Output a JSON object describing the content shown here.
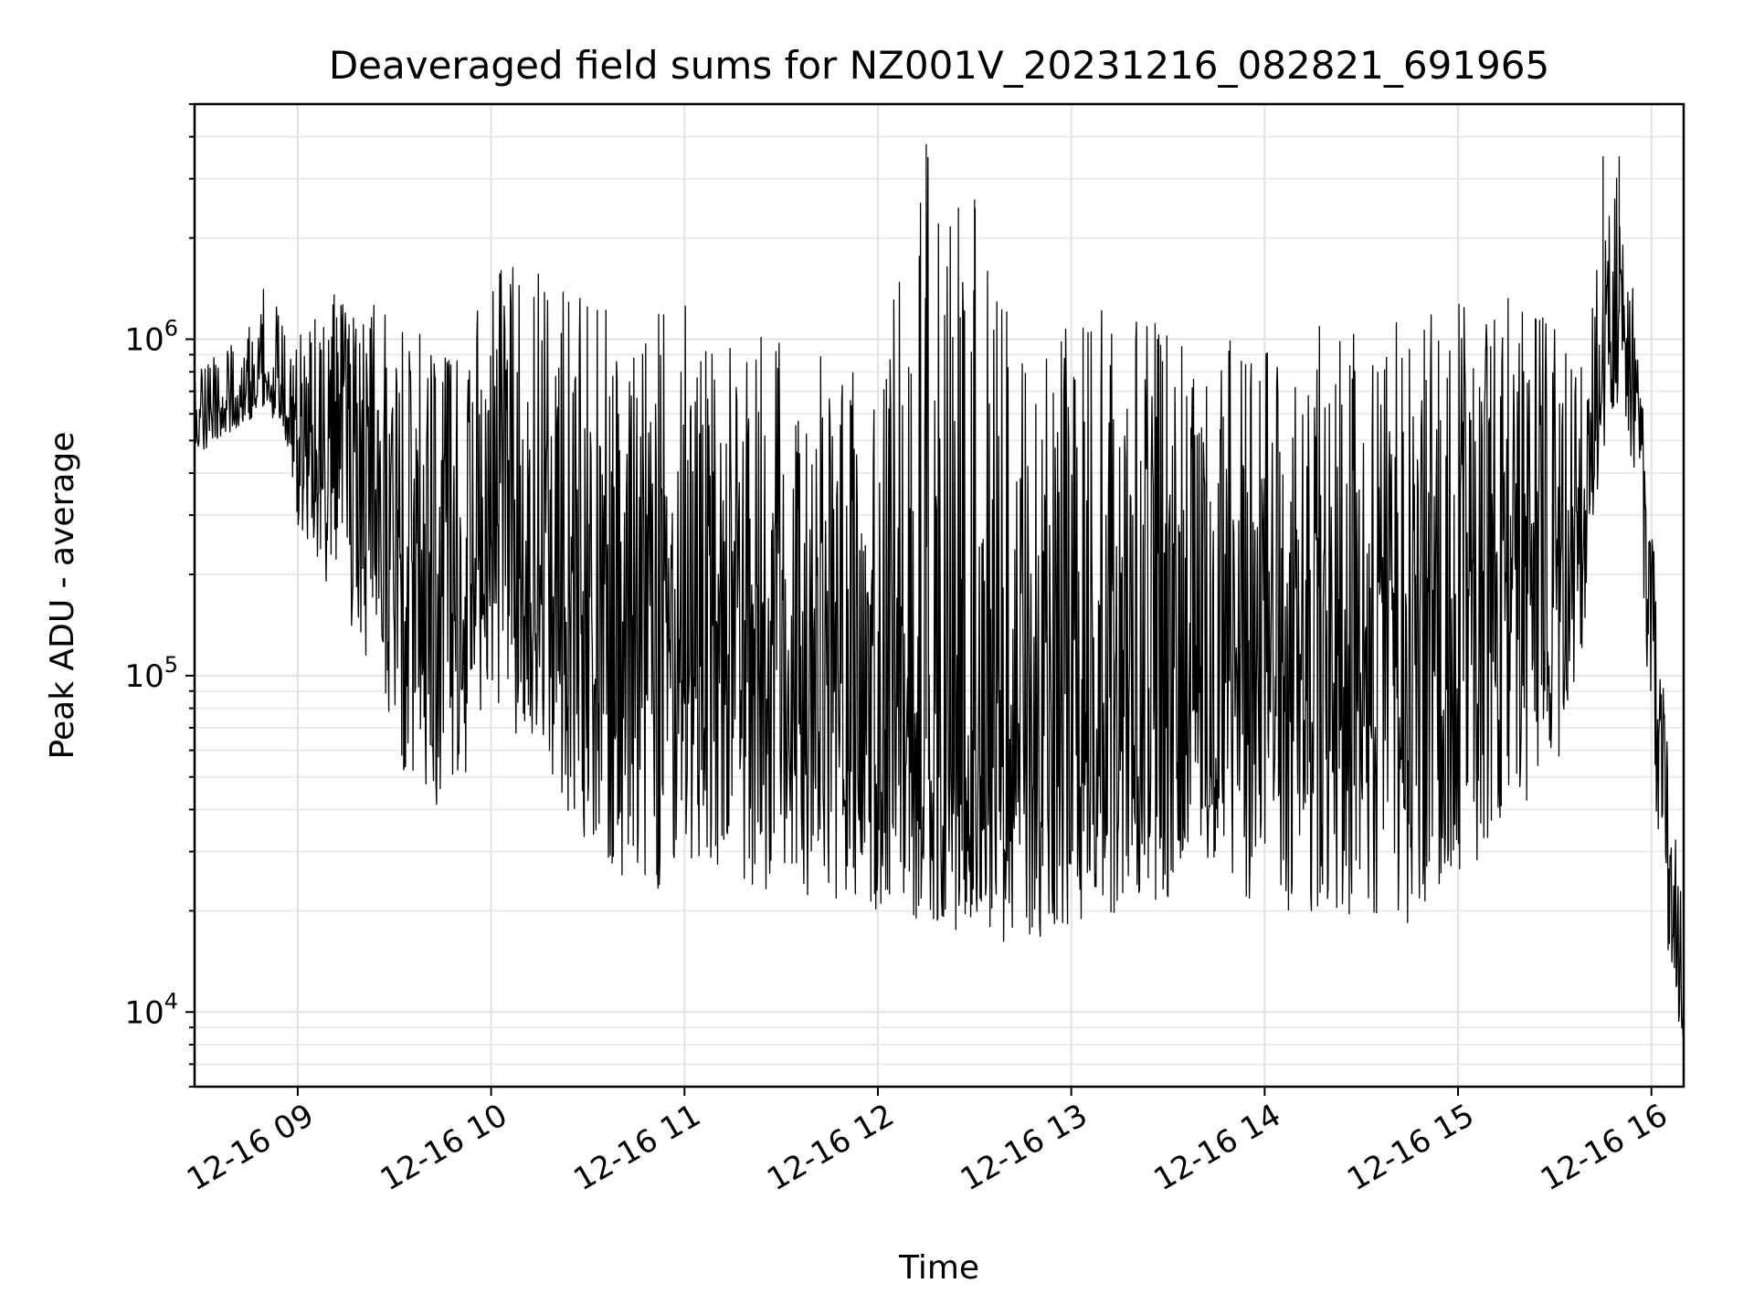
{
  "chart_data": {
    "type": "line",
    "title": "Deaveraged field sums for NZ001V_20231216_082821_691965",
    "xlabel": "Time",
    "ylabel": "Peak ADU - average",
    "yscale": "log",
    "ylim": [
      6000,
      5000000
    ],
    "yticks": [
      {
        "value": 10000,
        "base": "10",
        "exp": "4"
      },
      {
        "value": 100000,
        "base": "10",
        "exp": "5"
      },
      {
        "value": 1000000,
        "base": "10",
        "exp": "6"
      }
    ],
    "xlim": [
      "2023-12-16 08:28",
      "2023-12-16 16:10"
    ],
    "xticks": [
      {
        "time": "2023-12-16 09:00",
        "label": "12-16 09"
      },
      {
        "time": "2023-12-16 10:00",
        "label": "12-16 10"
      },
      {
        "time": "2023-12-16 11:00",
        "label": "12-16 11"
      },
      {
        "time": "2023-12-16 12:00",
        "label": "12-16 12"
      },
      {
        "time": "2023-12-16 13:00",
        "label": "12-16 13"
      },
      {
        "time": "2023-12-16 14:00",
        "label": "12-16 14"
      },
      {
        "time": "2023-12-16 15:00",
        "label": "12-16 15"
      },
      {
        "time": "2023-12-16 16:00",
        "label": "12-16 16"
      }
    ],
    "grid": true,
    "legend": "none",
    "line_color": "#000000",
    "series": [
      {
        "x": [
          "2023-12-16 08:28",
          "2023-12-16 08:35",
          "2023-12-16 08:42",
          "2023-12-16 08:50",
          "2023-12-16 08:55",
          "2023-12-16 09:00",
          "2023-12-16 09:10",
          "2023-12-16 09:20",
          "2023-12-16 09:30",
          "2023-12-16 09:35",
          "2023-12-16 09:40",
          "2023-12-16 09:50",
          "2023-12-16 10:00",
          "2023-12-16 10:10",
          "2023-12-16 10:20",
          "2023-12-16 10:30",
          "2023-12-16 10:40",
          "2023-12-16 10:50",
          "2023-12-16 11:00",
          "2023-12-16 11:15",
          "2023-12-16 11:30",
          "2023-12-16 11:45",
          "2023-12-16 12:00",
          "2023-12-16 12:15",
          "2023-12-16 12:30",
          "2023-12-16 12:45",
          "2023-12-16 13:00",
          "2023-12-16 13:15",
          "2023-12-16 13:30",
          "2023-12-16 13:45",
          "2023-12-16 14:00",
          "2023-12-16 14:15",
          "2023-12-16 14:30",
          "2023-12-16 14:45",
          "2023-12-16 15:00",
          "2023-12-16 15:15",
          "2023-12-16 15:30",
          "2023-12-16 15:40",
          "2023-12-16 15:45",
          "2023-12-16 15:50",
          "2023-12-16 15:55",
          "2023-12-16 16:00",
          "2023-12-16 16:05",
          "2023-12-16 16:10"
        ],
        "y": [
          600000,
          620000,
          680000,
          800000,
          650000,
          550000,
          500000,
          450000,
          250000,
          180000,
          180000,
          200000,
          280000,
          320000,
          260000,
          120000,
          110000,
          110000,
          120000,
          130000,
          100000,
          90000,
          70000,
          65000,
          60000,
          50000,
          60000,
          75000,
          90000,
          95000,
          100000,
          100000,
          110000,
          110000,
          120000,
          170000,
          220000,
          300000,
          900000,
          1200000,
          700000,
          200000,
          30000,
          9000
        ],
        "lower": [
          450000,
          500000,
          550000,
          600000,
          550000,
          280000,
          150000,
          120000,
          70000,
          40000,
          40000,
          40000,
          80000,
          60000,
          45000,
          30000,
          25000,
          22000,
          28000,
          25000,
          22000,
          22000,
          20000,
          18000,
          17000,
          15000,
          18000,
          20000,
          22000,
          25000,
          20000,
          18000,
          20000,
          18000,
          25000,
          30000,
          50000,
          120000,
          400000,
          600000,
          400000,
          60000,
          15000,
          7500
        ],
        "upper": [
          800000,
          900000,
          1000000,
          1500000,
          1300000,
          1000000,
          1400000,
          1500000,
          1200000,
          1100000,
          1000000,
          900000,
          1600000,
          1700000,
          1500000,
          1300000,
          1200000,
          1200000,
          1300000,
          1100000,
          1000000,
          900000,
          900000,
          3800000,
          2600000,
          900000,
          1100000,
          1300000,
          1100000,
          1000000,
          1000000,
          1100000,
          1200000,
          1100000,
          1300000,
          1400000,
          1100000,
          900000,
          3500000,
          3500000,
          1200000,
          300000,
          60000,
          20000
        ]
      }
    ]
  }
}
